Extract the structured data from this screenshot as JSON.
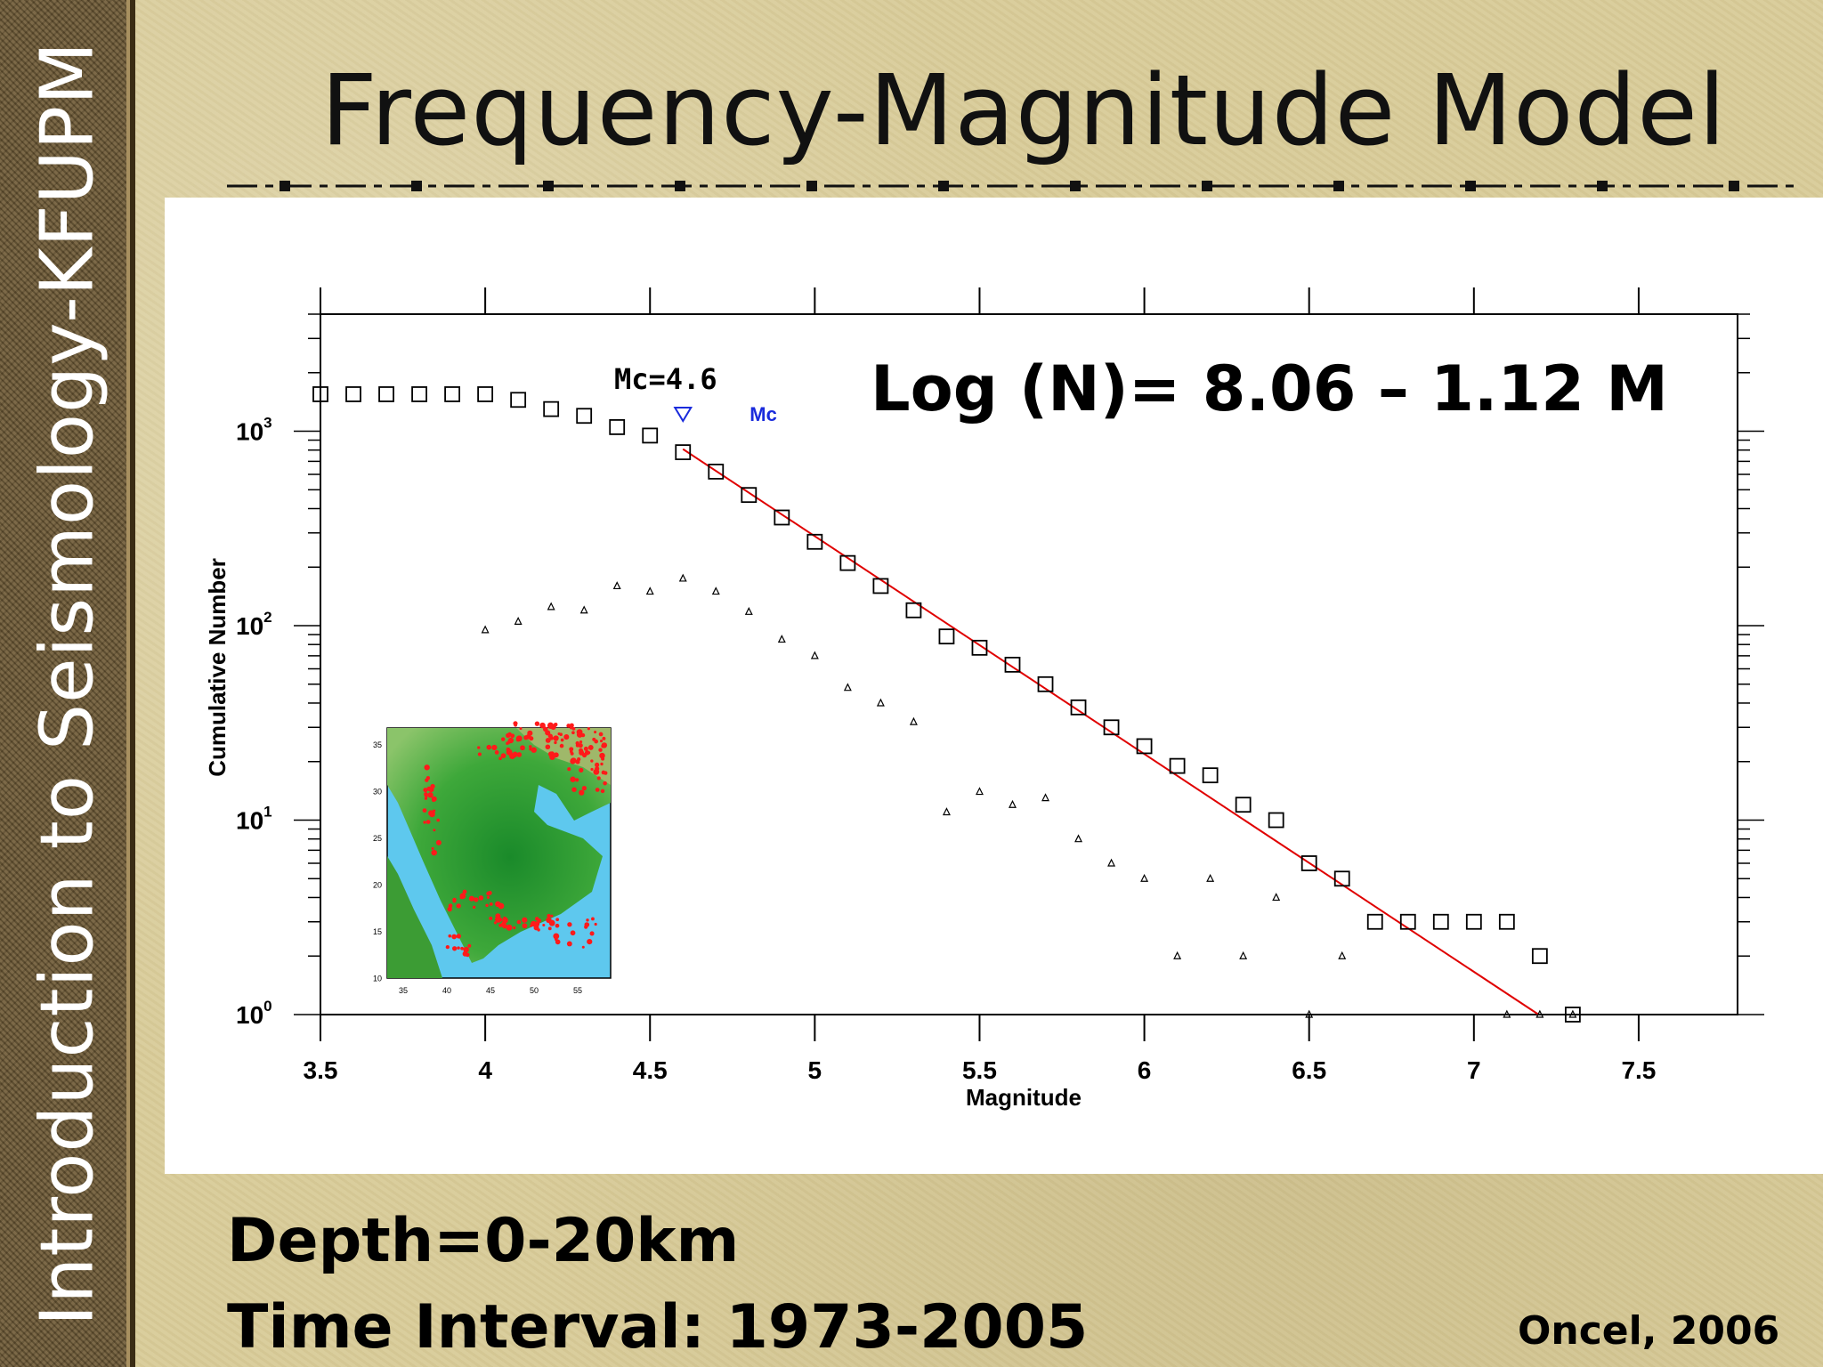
{
  "slide": {
    "sidebar_text": "Introduction to Seismology-KFUPM",
    "title": "Frequency-Magnitude Model",
    "formula": "Log (N)= 8.06 – 1.12 M",
    "depth": "Depth=0-20km",
    "time_interval": "Time Interval: 1973-2005",
    "citation": "Oncel, 2006"
  },
  "colors": {
    "background": "#d8cb98",
    "sidebar": "#6e5a35",
    "fit_line": "#e00000",
    "mc_marker": "#1a2bdc"
  },
  "chart_data": {
    "type": "scatter",
    "xlabel": "Magnitude",
    "ylabel": "Cumulative Number",
    "xlim": [
      3.5,
      7.8
    ],
    "ylim": [
      1,
      4000
    ],
    "y_scale": "log",
    "x_ticks": [
      "3.5",
      "4",
      "4.5",
      "5",
      "5.5",
      "6",
      "6.5",
      "7",
      "7.5"
    ],
    "y_ticks": [
      {
        "value": 1,
        "base": "10",
        "exp": "0"
      },
      {
        "value": 10,
        "base": "10",
        "exp": "1"
      },
      {
        "value": 100,
        "base": "10",
        "exp": "2"
      },
      {
        "value": 1000,
        "base": "10",
        "exp": "3"
      }
    ],
    "mc_label": "Mc=4.6",
    "mc_marker_label": "Mc",
    "mc_value": 4.6,
    "series": [
      {
        "marker": "square",
        "x": [
          3.5,
          3.6,
          3.7,
          3.8,
          3.9,
          4.0,
          4.1,
          4.2,
          4.3,
          4.4,
          4.5,
          4.6,
          4.7,
          4.8,
          4.9,
          5.0,
          5.1,
          5.2,
          5.3,
          5.4,
          5.5,
          5.6,
          5.7,
          5.8,
          5.9,
          6.0,
          6.1,
          6.2,
          6.3,
          6.4,
          6.5,
          6.6,
          6.7,
          6.8,
          6.9,
          7.0,
          7.1,
          7.2,
          7.3
        ],
        "y": [
          1550,
          1550,
          1550,
          1550,
          1550,
          1550,
          1450,
          1300,
          1200,
          1050,
          950,
          780,
          620,
          470,
          360,
          270,
          210,
          160,
          120,
          88,
          77,
          63,
          50,
          38,
          30,
          24,
          19,
          17,
          12,
          10,
          6,
          5,
          3,
          3,
          3,
          3,
          3,
          2,
          1
        ]
      },
      {
        "marker": "triangle",
        "x": [
          4.0,
          4.1,
          4.2,
          4.3,
          4.4,
          4.5,
          4.6,
          4.7,
          4.8,
          4.9,
          5.0,
          5.1,
          5.2,
          5.3,
          5.4,
          5.5,
          5.6,
          5.7,
          5.8,
          5.9,
          6.0,
          6.1,
          6.2,
          6.3,
          6.4,
          6.5,
          6.6,
          7.1,
          7.2,
          7.3
        ],
        "y": [
          95,
          105,
          125,
          120,
          160,
          150,
          175,
          150,
          118,
          85,
          70,
          48,
          40,
          32,
          11,
          14,
          12,
          13,
          8,
          6,
          5,
          2,
          5,
          2,
          4,
          1,
          2,
          1,
          1,
          1
        ]
      }
    ],
    "fit": {
      "a": 8.06,
      "b": 1.12,
      "x_from": 4.6
    }
  },
  "inset_map": {
    "x_ticks": [
      "35",
      "40",
      "45",
      "50",
      "55"
    ],
    "y_ticks": [
      "35",
      "30",
      "25",
      "20",
      "15",
      "10"
    ]
  }
}
